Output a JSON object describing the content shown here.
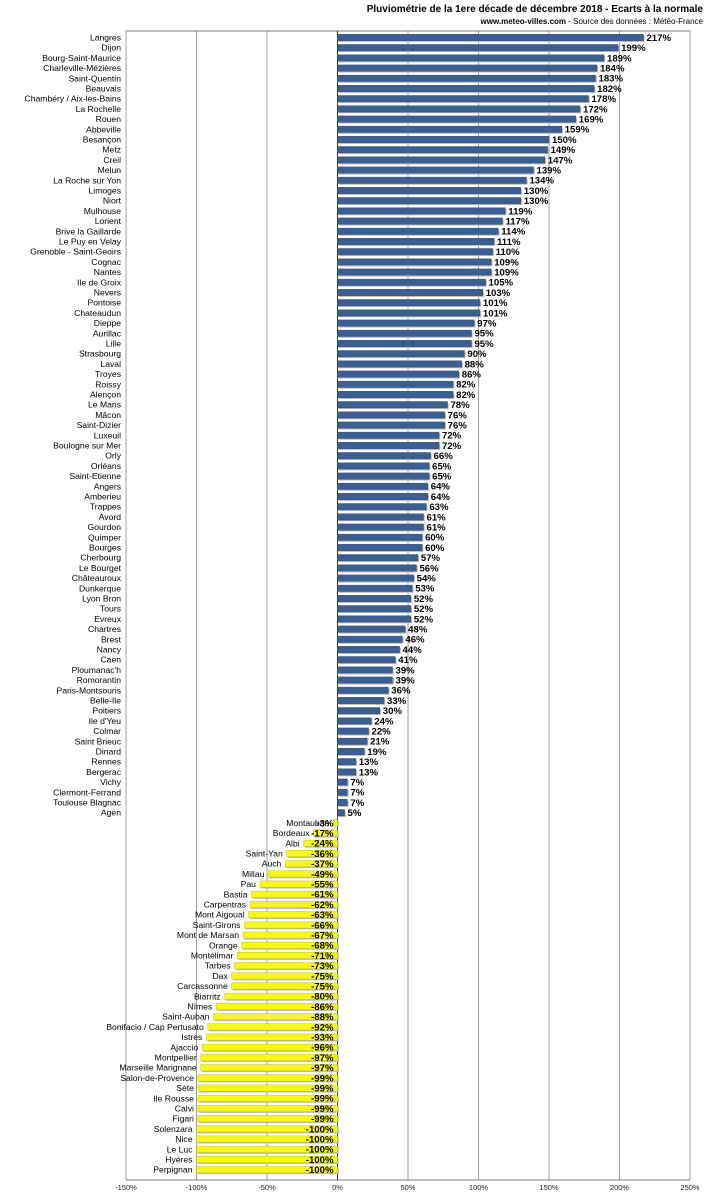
{
  "chart_data": {
    "type": "bar",
    "orientation": "horizontal",
    "title": "Pluviométrie de la 1ere décade de décembre 2018 - Ecarts à la normale",
    "subtitle_site": "www.meteo-villes.com",
    "subtitle_source": " - Source des données : Météo-France",
    "xlim": [
      -150,
      250
    ],
    "x_ticks": [
      -150,
      -100,
      -50,
      0,
      50,
      100,
      150,
      200,
      250
    ],
    "x_tick_suffix": "%",
    "grid": true,
    "colors": {
      "positive": "#3c5f91",
      "negative": "#f7f71c",
      "grid": "#7a7a7a",
      "frame": "#555555"
    },
    "categories": [
      "Langres",
      "Dijon",
      "Bourg-Saint-Maurice",
      "Charleville-Mézières",
      "Saint-Quentin",
      "Beauvais",
      "Chambéry / Aix-les-Bains",
      "La Rochelle",
      "Rouen",
      "Abbeville",
      "Besançon",
      "Metz",
      "Creil",
      "Melun",
      "La Roche sur Yon",
      "Limoges",
      "Niort",
      "Mulhouse",
      "Lorient",
      "Brive la Gaillarde",
      "Le Puy en Velay",
      "Grenoble - Saint-Geoirs",
      "Cognac",
      "Nantes",
      "Ile de Groix",
      "Nevers",
      "Pontoise",
      "Chateaudun",
      "Dieppe",
      "Aurillac",
      "Lille",
      "Strasbourg",
      "Laval",
      "Troyes",
      "Roissy",
      "Alençon",
      "Le Mans",
      "Mâcon",
      "Saint-Dizier",
      "Luxeuil",
      "Boulogne sur Mer",
      "Orly",
      "Orléans",
      "Saint-Etienne",
      "Angers",
      "Amberieu",
      "Trappes",
      "Avord",
      "Gourdon",
      "Quimper",
      "Bourges",
      "Cherbourg",
      "Le Bourget",
      "Châteauroux",
      "Dunkerque",
      "Lyon Bron",
      "Tours",
      "Evreux",
      "Chartres",
      "Brest",
      "Nancy",
      "Caen",
      "Ploumanac'h",
      "Romorantin",
      "Paris-Montsouris",
      "Belle-Ile",
      "Poitiers",
      "Ile d'Yeu",
      "Colmar",
      "Saint Brieuc",
      "Dinard",
      "Rennes",
      "Bergerac",
      "Vichy",
      "Clermont-Ferrand",
      "Toulouse Blagnac",
      "Agen",
      "Montauban",
      "Bordeaux",
      "Albi",
      "Saint-Yan",
      "Auch",
      "Millau",
      "Pau",
      "Bastia",
      "Carpentras",
      "Mont Aigoual",
      "Saint-Girons",
      "Mont de Marsan",
      "Orange",
      "Montélimar",
      "Tarbes",
      "Dax",
      "Carcassonne",
      "Biarritz",
      "Nîmes",
      "Saint-Auban",
      "Bonifacio / Cap Pertusato",
      "Istres",
      "Ajaccio",
      "Montpellier",
      "Marseille Marignane",
      "Salon-de-Provence",
      "Sète",
      "Ile Rousse",
      "Calvi",
      "Figari",
      "Solenzara",
      "Nice",
      "Le Luc",
      "Hyères",
      "Perpignan"
    ],
    "values": [
      217,
      199,
      189,
      184,
      183,
      182,
      178,
      172,
      169,
      159,
      150,
      149,
      147,
      139,
      134,
      130,
      130,
      119,
      117,
      114,
      111,
      110,
      109,
      109,
      105,
      103,
      101,
      101,
      97,
      95,
      95,
      90,
      88,
      86,
      82,
      82,
      78,
      76,
      76,
      72,
      72,
      66,
      65,
      65,
      64,
      64,
      63,
      61,
      61,
      60,
      60,
      57,
      56,
      54,
      53,
      52,
      52,
      52,
      48,
      46,
      44,
      41,
      39,
      39,
      36,
      33,
      30,
      24,
      22,
      21,
      19,
      13,
      13,
      7,
      7,
      7,
      5,
      -3,
      -17,
      -24,
      -36,
      -37,
      -49,
      -55,
      -61,
      -62,
      -63,
      -66,
      -67,
      -68,
      -71,
      -73,
      -75,
      -75,
      -80,
      -86,
      -88,
      -92,
      -93,
      -96,
      -97,
      -97,
      -99,
      -99,
      -99,
      -99,
      -99,
      -100,
      -100,
      -100,
      -100,
      -100
    ],
    "value_suffix": "%"
  }
}
